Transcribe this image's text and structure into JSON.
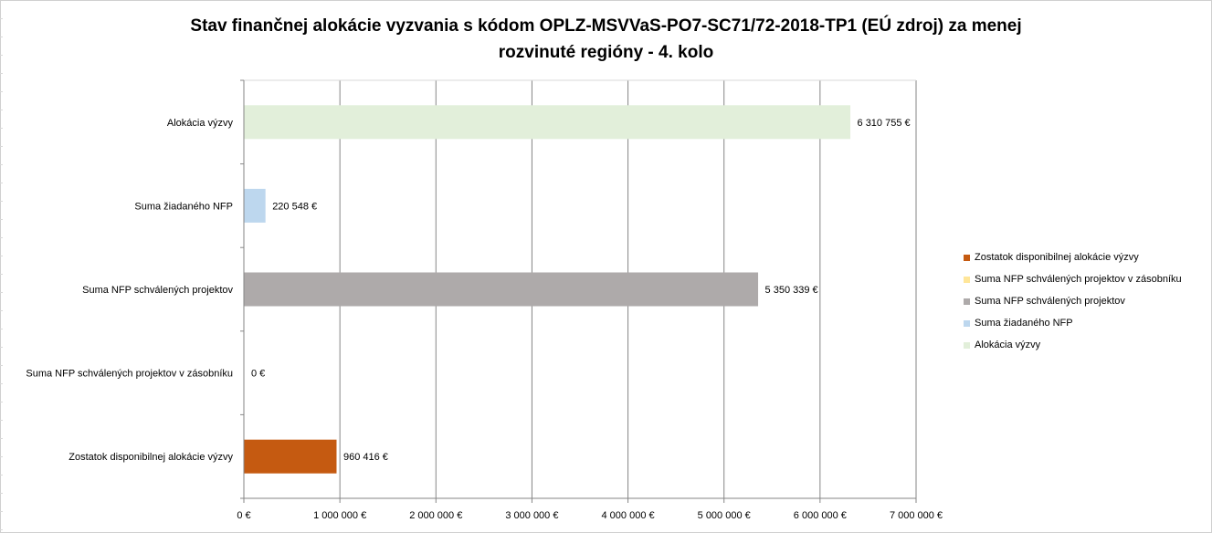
{
  "chart_data": {
    "type": "bar",
    "orientation": "horizontal",
    "title_line1": "Stav finančnej alokácie vyzvania s kódom OPLZ-MSVVaS-PO7-SC71/72-2018-TP1 (EÚ zdroj) za menej",
    "title_line2": "rozvinuté regióny - 4. kolo",
    "categories": [
      "Alokácia výzvy",
      "Suma žiadaného NFP",
      "Suma NFP schválených projektov",
      "Suma NFP schválených projektov v zásobníku",
      "Zostatok disponibilnej alokácie výzvy"
    ],
    "values": [
      6310755,
      220548,
      5350339,
      0,
      960416
    ],
    "data_labels": [
      "6 310 755 €",
      "220 548 €",
      "5 350 339 €",
      "0 €",
      "960 416 €"
    ],
    "colors": [
      "#e2efda",
      "#bdd7ee",
      "#aeaaaa",
      "#ffe699",
      "#c55a11"
    ],
    "xlim": [
      0,
      7000000
    ],
    "x_ticks": [
      0,
      1000000,
      2000000,
      3000000,
      4000000,
      5000000,
      6000000,
      7000000
    ],
    "x_tick_labels": [
      "0 €",
      "1 000 000 €",
      "2 000 000 €",
      "3 000 000 €",
      "4 000 000 €",
      "5 000 000 €",
      "6 000 000 €",
      "7 000 000 €"
    ],
    "grid": "vertical",
    "legend": {
      "placement": "right",
      "items": [
        {
          "label": "Zostatok disponibilnej alokácie výzvy",
          "color": "#c55a11"
        },
        {
          "label": "Suma NFP schválených projektov v zásobníku",
          "color": "#ffe699"
        },
        {
          "label": "Suma NFP schválených projektov",
          "color": "#aeaaaa"
        },
        {
          "label": "Suma žiadaného NFP",
          "color": "#bdd7ee"
        },
        {
          "label": "Alokácia výzvy",
          "color": "#e2efda"
        }
      ]
    }
  }
}
